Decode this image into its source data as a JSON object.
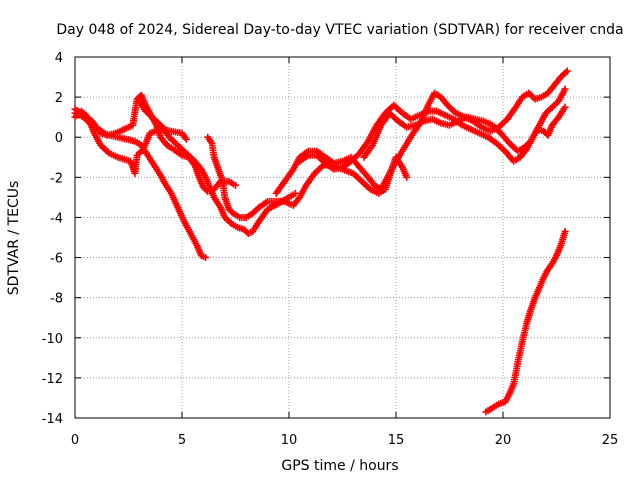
{
  "chart_data": {
    "type": "scatter",
    "title": "Day 048 of 2024, Sidereal Day-to-day VTEC variation (SDTVAR) for receiver cnda",
    "xlabel": "GPS time / hours",
    "ylabel": "SDTVAR / TECUs",
    "xlim": [
      0,
      25
    ],
    "ylim": [
      -14,
      4
    ],
    "xticks": [
      "0",
      "5",
      "10",
      "15",
      "20",
      "25"
    ],
    "yticks": [
      "4",
      "2",
      "0",
      "-2",
      "-4",
      "-6",
      "-8",
      "-10",
      "-12",
      "-14"
    ],
    "grid": true,
    "marker": "plus",
    "color": "#ff0000",
    "series": [
      {
        "name": "trace-1",
        "points": [
          [
            0,
            1.0
          ],
          [
            0.3,
            1.3
          ],
          [
            0.6,
            1.0
          ],
          [
            0.9,
            0.2
          ],
          [
            1.2,
            -0.4
          ],
          [
            1.6,
            -0.8
          ],
          [
            2.0,
            -1.0
          ],
          [
            2.3,
            -1.1
          ],
          [
            2.6,
            -1.2
          ],
          [
            2.8,
            -1.8
          ],
          [
            2.9,
            -0.9
          ],
          [
            3.0,
            -0.8
          ],
          [
            3.2,
            -0.6
          ],
          [
            3.5,
            0.2
          ],
          [
            4.0,
            0.4
          ],
          [
            4.5,
            0.3
          ],
          [
            5.0,
            0.2
          ],
          [
            5.2,
            -0.1
          ]
        ]
      },
      {
        "name": "trace-2",
        "points": [
          [
            0,
            1.2
          ],
          [
            0.4,
            1.0
          ],
          [
            0.8,
            0.6
          ],
          [
            1.1,
            0.4
          ],
          [
            1.5,
            0.1
          ],
          [
            1.9,
            0.2
          ],
          [
            2.3,
            0.4
          ],
          [
            2.7,
            0.6
          ],
          [
            2.9,
            1.9
          ],
          [
            3.1,
            2.1
          ],
          [
            3.3,
            1.6
          ],
          [
            3.6,
            1.0
          ],
          [
            3.8,
            0.6
          ],
          [
            4.0,
            0.0
          ],
          [
            4.3,
            -0.4
          ],
          [
            4.6,
            -0.6
          ],
          [
            5.0,
            -0.9
          ],
          [
            5.3,
            -1.0
          ],
          [
            5.6,
            -1.4
          ],
          [
            5.8,
            -2.0
          ],
          [
            6.0,
            -2.5
          ],
          [
            6.2,
            -2.7
          ],
          [
            6.5,
            -2.6
          ],
          [
            6.8,
            -2.2
          ],
          [
            7.2,
            -2.2
          ],
          [
            7.5,
            -2.4
          ]
        ]
      },
      {
        "name": "trace-3",
        "points": [
          [
            0,
            1.4
          ],
          [
            0.4,
            1.1
          ],
          [
            0.8,
            0.8
          ],
          [
            1.2,
            0.2
          ],
          [
            1.6,
            0.1
          ],
          [
            2.0,
            0.0
          ],
          [
            2.4,
            -0.1
          ],
          [
            2.8,
            -0.2
          ],
          [
            3.1,
            -0.4
          ],
          [
            3.4,
            -0.9
          ],
          [
            3.7,
            -1.4
          ],
          [
            4.0,
            -1.9
          ],
          [
            4.2,
            -2.3
          ],
          [
            4.5,
            -2.8
          ],
          [
            4.8,
            -3.5
          ],
          [
            5.1,
            -4.2
          ],
          [
            5.4,
            -4.8
          ],
          [
            5.7,
            -5.4
          ],
          [
            5.9,
            -5.9
          ],
          [
            6.1,
            -6.0
          ]
        ]
      },
      {
        "name": "trace-4",
        "points": [
          [
            3.0,
            1.8
          ],
          [
            3.3,
            1.3
          ],
          [
            3.5,
            1.1
          ],
          [
            3.8,
            0.8
          ],
          [
            4.1,
            0.5
          ],
          [
            4.4,
            0.0
          ],
          [
            4.7,
            -0.3
          ],
          [
            5.0,
            -0.6
          ],
          [
            5.3,
            -0.9
          ],
          [
            5.6,
            -1.2
          ],
          [
            5.9,
            -1.6
          ],
          [
            6.1,
            -2.0
          ],
          [
            6.3,
            -2.5
          ],
          [
            6.5,
            -3.0
          ],
          [
            6.8,
            -3.5
          ],
          [
            7.0,
            -4.0
          ],
          [
            7.3,
            -4.3
          ],
          [
            7.6,
            -4.5
          ],
          [
            7.9,
            -4.6
          ],
          [
            8.1,
            -4.8
          ],
          [
            8.3,
            -4.7
          ],
          [
            8.6,
            -4.2
          ],
          [
            9.0,
            -3.6
          ],
          [
            9.5,
            -3.3
          ],
          [
            10.0,
            -3.0
          ],
          [
            10.3,
            -2.8
          ]
        ]
      },
      {
        "name": "trace-5",
        "points": [
          [
            6.2,
            0.0
          ],
          [
            6.4,
            -0.3
          ],
          [
            6.5,
            -1.0
          ],
          [
            6.7,
            -1.6
          ],
          [
            6.9,
            -2.2
          ],
          [
            7.0,
            -3.0
          ],
          [
            7.2,
            -3.6
          ],
          [
            7.4,
            -3.8
          ],
          [
            7.7,
            -4.0
          ],
          [
            8.0,
            -4.0
          ],
          [
            8.3,
            -3.8
          ],
          [
            8.6,
            -3.5
          ],
          [
            9.0,
            -3.2
          ],
          [
            9.4,
            -3.2
          ],
          [
            9.8,
            -3.2
          ],
          [
            10.2,
            -3.4
          ],
          [
            10.5,
            -3.0
          ],
          [
            10.8,
            -2.4
          ],
          [
            11.2,
            -1.8
          ],
          [
            11.6,
            -1.4
          ],
          [
            12.0,
            -1.4
          ],
          [
            12.5,
            -1.6
          ],
          [
            13.0,
            -1.8
          ],
          [
            13.4,
            -2.2
          ],
          [
            13.8,
            -2.6
          ],
          [
            14.2,
            -2.8
          ],
          [
            14.5,
            -2.6
          ],
          [
            14.8,
            -1.6
          ],
          [
            15.0,
            -1.0
          ],
          [
            15.3,
            -1.5
          ],
          [
            15.5,
            -2.0
          ]
        ]
      },
      {
        "name": "trace-6",
        "points": [
          [
            9.4,
            -2.8
          ],
          [
            9.8,
            -2.2
          ],
          [
            10.2,
            -1.6
          ],
          [
            10.5,
            -1.0
          ],
          [
            10.9,
            -0.7
          ],
          [
            11.3,
            -0.7
          ],
          [
            11.7,
            -1.0
          ],
          [
            12.1,
            -1.3
          ],
          [
            12.5,
            -1.2
          ],
          [
            12.9,
            -1.0
          ],
          [
            13.3,
            -1.5
          ],
          [
            13.7,
            -2.0
          ],
          [
            14.0,
            -2.4
          ],
          [
            14.3,
            -2.6
          ],
          [
            14.7,
            -1.8
          ],
          [
            15.0,
            -1.2
          ],
          [
            15.4,
            -0.5
          ],
          [
            15.8,
            0.2
          ],
          [
            16.2,
            0.8
          ],
          [
            16.5,
            1.6
          ],
          [
            16.8,
            2.2
          ],
          [
            17.1,
            2.0
          ],
          [
            17.4,
            1.6
          ],
          [
            17.8,
            1.2
          ],
          [
            18.2,
            1.0
          ],
          [
            18.6,
            0.8
          ],
          [
            19.0,
            0.5
          ],
          [
            19.4,
            0.3
          ],
          [
            19.8,
            0.5
          ],
          [
            20.2,
            0.9
          ],
          [
            20.6,
            1.5
          ],
          [
            20.9,
            2.0
          ],
          [
            21.2,
            2.2
          ],
          [
            21.5,
            1.9
          ],
          [
            21.8,
            2.0
          ],
          [
            22.1,
            2.2
          ],
          [
            22.4,
            2.6
          ],
          [
            22.7,
            3.0
          ],
          [
            23.0,
            3.3
          ]
        ]
      },
      {
        "name": "trace-7",
        "points": [
          [
            10.5,
            -1.2
          ],
          [
            10.9,
            -0.9
          ],
          [
            11.3,
            -0.9
          ],
          [
            11.7,
            -1.3
          ],
          [
            12.1,
            -1.6
          ],
          [
            12.5,
            -1.5
          ],
          [
            12.9,
            -1.2
          ],
          [
            13.3,
            -0.8
          ],
          [
            13.7,
            -0.2
          ],
          [
            14.1,
            0.6
          ],
          [
            14.5,
            1.2
          ],
          [
            14.9,
            1.6
          ],
          [
            15.3,
            1.2
          ],
          [
            15.7,
            0.9
          ],
          [
            16.1,
            1.1
          ],
          [
            16.5,
            1.3
          ],
          [
            16.9,
            1.3
          ],
          [
            17.3,
            1.1
          ],
          [
            17.7,
            0.9
          ],
          [
            18.1,
            0.6
          ],
          [
            18.5,
            0.4
          ],
          [
            18.9,
            0.2
          ],
          [
            19.3,
            0.0
          ],
          [
            19.7,
            -0.3
          ],
          [
            20.1,
            -0.7
          ],
          [
            20.5,
            -1.2
          ],
          [
            20.8,
            -1.0
          ],
          [
            21.1,
            -0.6
          ],
          [
            21.4,
            0.0
          ],
          [
            21.7,
            0.6
          ],
          [
            22.0,
            1.2
          ],
          [
            22.3,
            1.5
          ],
          [
            22.6,
            1.8
          ],
          [
            22.9,
            2.4
          ]
        ]
      },
      {
        "name": "trace-8",
        "points": [
          [
            13.5,
            -1.0
          ],
          [
            13.9,
            -0.4
          ],
          [
            14.3,
            0.6
          ],
          [
            14.7,
            1.2
          ],
          [
            15.1,
            0.8
          ],
          [
            15.5,
            0.5
          ],
          [
            15.9,
            0.6
          ],
          [
            16.3,
            0.8
          ],
          [
            16.7,
            0.9
          ],
          [
            17.1,
            0.7
          ],
          [
            17.5,
            0.6
          ],
          [
            17.9,
            0.8
          ],
          [
            18.3,
            1.0
          ],
          [
            18.7,
            0.9
          ],
          [
            19.1,
            0.8
          ],
          [
            19.5,
            0.6
          ],
          [
            19.9,
            0.2
          ],
          [
            20.3,
            -0.3
          ],
          [
            20.7,
            -0.7
          ],
          [
            21.0,
            -0.5
          ],
          [
            21.3,
            -0.2
          ],
          [
            21.6,
            0.4
          ],
          [
            21.9,
            0.3
          ],
          [
            22.1,
            0.1
          ],
          [
            22.3,
            0.6
          ],
          [
            22.6,
            1.0
          ],
          [
            22.9,
            1.5
          ]
        ]
      },
      {
        "name": "trace-9",
        "points": [
          [
            19.2,
            -13.7
          ],
          [
            19.5,
            -13.5
          ],
          [
            19.8,
            -13.3
          ],
          [
            20.1,
            -13.2
          ],
          [
            20.3,
            -12.8
          ],
          [
            20.5,
            -12.3
          ],
          [
            20.7,
            -11.2
          ],
          [
            20.9,
            -10.2
          ],
          [
            21.1,
            -9.3
          ],
          [
            21.3,
            -8.6
          ],
          [
            21.5,
            -8.0
          ],
          [
            21.7,
            -7.5
          ],
          [
            21.9,
            -7.0
          ],
          [
            22.1,
            -6.6
          ],
          [
            22.3,
            -6.3
          ],
          [
            22.5,
            -5.9
          ],
          [
            22.7,
            -5.4
          ],
          [
            22.9,
            -4.7
          ]
        ]
      }
    ]
  }
}
